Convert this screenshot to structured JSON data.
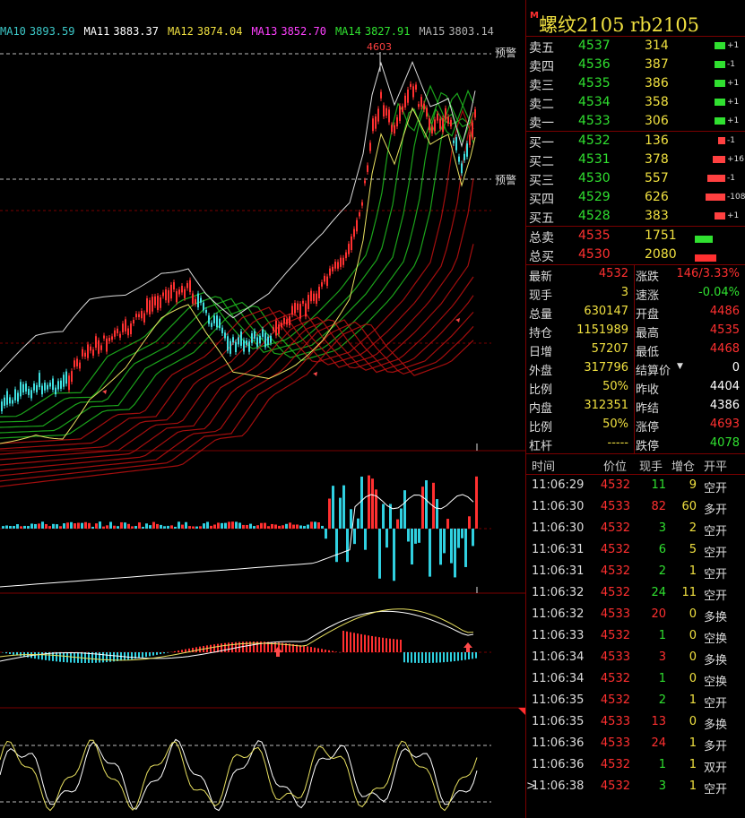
{
  "ma_bar": [
    {
      "label": "MA10",
      "value": "3893.59",
      "color": "#3cc8c8"
    },
    {
      "label": "MA11",
      "value": "3883.37",
      "color": "#ffffff"
    },
    {
      "label": "MA12",
      "value": "3874.04",
      "color": "#f0e040"
    },
    {
      "label": "MA13",
      "value": "3852.70",
      "color": "#ff40ff"
    },
    {
      "label": "MA14",
      "value": "3827.91",
      "color": "#30e030"
    },
    {
      "label": "MA15",
      "value": "3803.14",
      "color": "#b0b0b0"
    }
  ],
  "chart": {
    "high_label": "4603",
    "alert1": "预警",
    "alert2": "预警"
  },
  "quote": {
    "title_flag": "M",
    "title": "螺纹2105  rb2105",
    "asks": [
      {
        "label": "卖五",
        "price": "4537",
        "vol": "314",
        "chg": "+1",
        "w": 12
      },
      {
        "label": "卖四",
        "price": "4536",
        "vol": "387",
        "chg": "-1",
        "w": 12
      },
      {
        "label": "卖三",
        "price": "4535",
        "vol": "386",
        "chg": "+1",
        "w": 12
      },
      {
        "label": "卖二",
        "price": "4534",
        "vol": "358",
        "chg": "+1",
        "w": 12
      },
      {
        "label": "卖一",
        "price": "4533",
        "vol": "306",
        "chg": "+1",
        "w": 12
      }
    ],
    "bids": [
      {
        "label": "买一",
        "price": "4532",
        "vol": "136",
        "chg": "-1",
        "w": 8
      },
      {
        "label": "买二",
        "price": "4531",
        "vol": "378",
        "chg": "+16",
        "w": 14
      },
      {
        "label": "买三",
        "price": "4530",
        "vol": "557",
        "chg": "-1",
        "w": 20
      },
      {
        "label": "买四",
        "price": "4529",
        "vol": "626",
        "chg": "-108",
        "w": 22
      },
      {
        "label": "买五",
        "price": "4528",
        "vol": "383",
        "chg": "+1",
        "w": 12
      }
    ],
    "totals": [
      {
        "label": "总卖",
        "price": "4535",
        "vol": "1751",
        "color": "#30e030",
        "w": 20
      },
      {
        "label": "总买",
        "price": "4530",
        "vol": "2080",
        "color": "#ff3030",
        "w": 24
      }
    ],
    "stats": [
      {
        "l": "最新",
        "v": "4532",
        "vc": "#ff3030",
        "l2": "涨跌",
        "v2": "146/3.33%",
        "v2c": "#ff3030"
      },
      {
        "l": "现手",
        "v": "3",
        "vc": "#f0e040",
        "l2": "速涨",
        "v2": "-0.04%",
        "v2c": "#30e030"
      },
      {
        "l": "总量",
        "v": "630147",
        "vc": "#f0e040",
        "l2": "开盘",
        "v2": "4486",
        "v2c": "#ff3030"
      },
      {
        "l": "持仓",
        "v": "1151989",
        "vc": "#f0e040",
        "l2": "最高",
        "v2": "4535",
        "v2c": "#ff3030"
      },
      {
        "l": "日增",
        "v": "57207",
        "vc": "#f0e040",
        "l2": "最低",
        "v2": "4468",
        "v2c": "#ff3030"
      },
      {
        "l": "外盘",
        "v": "317796",
        "vc": "#f0e040",
        "l2": "结算价",
        "v2": "0",
        "v2c": "#ffffff"
      },
      {
        "l": "比例",
        "v": "50%",
        "vc": "#f0e040",
        "l2": "昨收",
        "v2": "4404",
        "v2c": "#ffffff"
      },
      {
        "l": "内盘",
        "v": "312351",
        "vc": "#f0e040",
        "l2": "昨结",
        "v2": "4386",
        "v2c": "#ffffff"
      },
      {
        "l": "比例",
        "v": "50%",
        "vc": "#f0e040",
        "l2": "涨停",
        "v2": "4693",
        "v2c": "#ff3030"
      },
      {
        "l": "杠杆",
        "v": "-----",
        "vc": "#f0e040",
        "l2": "跌停",
        "v2": "4078",
        "v2c": "#30e030"
      }
    ],
    "tick_head": {
      "time": "时间",
      "price": "价位",
      "vol": "现手",
      "inc": "增仓",
      "kind": "开平"
    },
    "ticks": [
      {
        "time": "11:06:29",
        "price": "4532",
        "vol": "11",
        "inc": "9",
        "kind": "空开",
        "pc": "#ff3030"
      },
      {
        "time": "11:06:30",
        "price": "4533",
        "vol": "82",
        "inc": "60",
        "kind": "多开",
        "pc": "#ff3030",
        "vc": "#ff3030"
      },
      {
        "time": "11:06:30",
        "price": "4532",
        "vol": "3",
        "inc": "2",
        "kind": "空开",
        "pc": "#ff3030"
      },
      {
        "time": "11:06:31",
        "price": "4532",
        "vol": "6",
        "inc": "5",
        "kind": "空开",
        "pc": "#ff3030"
      },
      {
        "time": "11:06:31",
        "price": "4532",
        "vol": "2",
        "inc": "1",
        "kind": "空开",
        "pc": "#ff3030"
      },
      {
        "time": "11:06:32",
        "price": "4532",
        "vol": "24",
        "inc": "11",
        "kind": "空开",
        "pc": "#ff3030"
      },
      {
        "time": "11:06:32",
        "price": "4533",
        "vol": "20",
        "inc": "0",
        "kind": "多换",
        "pc": "#ff3030",
        "vc": "#ff3030"
      },
      {
        "time": "11:06:33",
        "price": "4532",
        "vol": "1",
        "inc": "0",
        "kind": "空换",
        "pc": "#ff3030"
      },
      {
        "time": "11:06:34",
        "price": "4533",
        "vol": "3",
        "inc": "0",
        "kind": "多换",
        "pc": "#ff3030",
        "vc": "#ff3030"
      },
      {
        "time": "11:06:34",
        "price": "4532",
        "vol": "1",
        "inc": "0",
        "kind": "空换",
        "pc": "#ff3030"
      },
      {
        "time": "11:06:35",
        "price": "4532",
        "vol": "2",
        "inc": "1",
        "kind": "空开",
        "pc": "#ff3030"
      },
      {
        "time": "11:06:35",
        "price": "4533",
        "vol": "13",
        "inc": "0",
        "kind": "多换",
        "pc": "#ff3030",
        "vc": "#ff3030"
      },
      {
        "time": "11:06:36",
        "price": "4533",
        "vol": "24",
        "inc": "1",
        "kind": "多开",
        "pc": "#ff3030",
        "vc": "#ff3030"
      },
      {
        "time": "11:06:36",
        "price": "4532",
        "vol": "1",
        "inc": "1",
        "kind": "双开",
        "pc": "#ff3030"
      },
      {
        "time": "11:06:38",
        "price": "4532",
        "vol": "3",
        "inc": "1",
        "kind": "空开",
        "pc": "#ff3030",
        "cursor": ">"
      }
    ]
  }
}
